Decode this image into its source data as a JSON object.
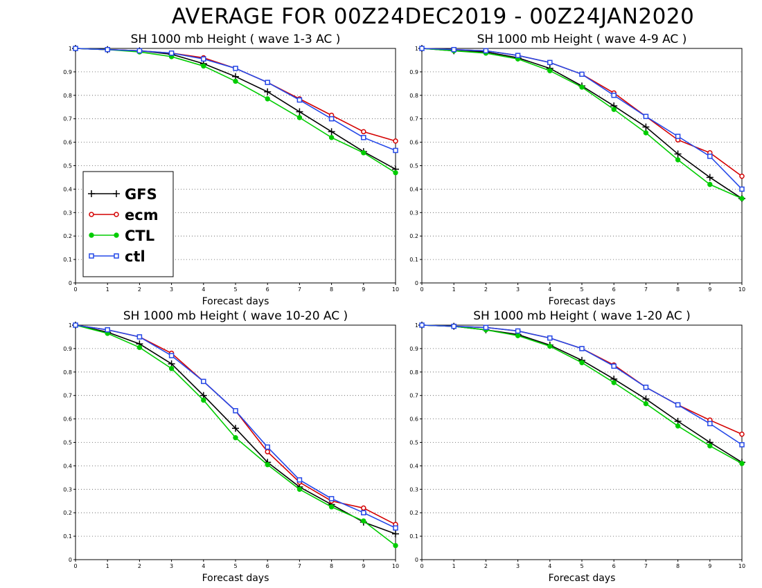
{
  "title": "AVERAGE FOR 00Z24DEC2019 - 00Z24JAN2020",
  "legend": [
    {
      "name": "GFS",
      "color": "#000000",
      "marker": "plus"
    },
    {
      "name": "ecm",
      "color": "#d40000",
      "marker": "open-circle"
    },
    {
      "name": "CTL",
      "color": "#00cc00",
      "marker": "filled-circle"
    },
    {
      "name": "ctl",
      "color": "#2448e8",
      "marker": "open-square"
    }
  ],
  "chart_data": [
    {
      "type": "line",
      "title": "SH 1000 mb Height ( wave 1-3 AC )",
      "xlabel": "Forecast days",
      "ylabel": "",
      "x": [
        0,
        1,
        2,
        3,
        4,
        5,
        6,
        7,
        8,
        9,
        10
      ],
      "xticks": [
        "0",
        "1",
        "2",
        "3",
        "4",
        "5",
        "6",
        "7",
        "8",
        "9",
        "10"
      ],
      "yticks": [
        "0",
        "0.1",
        "0.2",
        "0.3",
        "0.4",
        "0.5",
        "0.6",
        "0.7",
        "0.8",
        "0.9",
        "1"
      ],
      "xlim": [
        0,
        10
      ],
      "ylim": [
        0,
        1
      ],
      "grid": "horizontal dotted",
      "legend_position": "lower-left",
      "series": [
        {
          "name": "GFS",
          "values": [
            1.0,
            0.995,
            0.99,
            0.975,
            0.935,
            0.88,
            0.815,
            0.73,
            0.645,
            0.56,
            0.485
          ]
        },
        {
          "name": "ecm",
          "values": [
            1.0,
            0.995,
            0.99,
            0.98,
            0.96,
            0.915,
            0.855,
            0.785,
            0.715,
            0.645,
            0.605
          ]
        },
        {
          "name": "CTL",
          "values": [
            1.0,
            0.995,
            0.985,
            0.965,
            0.925,
            0.86,
            0.785,
            0.705,
            0.62,
            0.555,
            0.47
          ]
        },
        {
          "name": "ctl",
          "values": [
            1.0,
            0.995,
            0.99,
            0.98,
            0.955,
            0.915,
            0.855,
            0.78,
            0.7,
            0.62,
            0.565
          ]
        }
      ]
    },
    {
      "type": "line",
      "title": "SH 1000 mb Height ( wave 4-9 AC )",
      "xlabel": "Forecast days",
      "ylabel": "",
      "x": [
        0,
        1,
        2,
        3,
        4,
        5,
        6,
        7,
        8,
        9,
        10
      ],
      "xticks": [
        "0",
        "1",
        "2",
        "3",
        "4",
        "5",
        "6",
        "7",
        "8",
        "9",
        "10"
      ],
      "yticks": [
        "0",
        "0.1",
        "0.2",
        "0.3",
        "0.4",
        "0.5",
        "0.6",
        "0.7",
        "0.8",
        "0.9",
        "1"
      ],
      "xlim": [
        0,
        10
      ],
      "ylim": [
        0,
        1
      ],
      "grid": "horizontal dotted",
      "series": [
        {
          "name": "GFS",
          "values": [
            1.0,
            0.99,
            0.985,
            0.96,
            0.915,
            0.84,
            0.755,
            0.665,
            0.55,
            0.45,
            0.36
          ]
        },
        {
          "name": "ecm",
          "values": [
            1.0,
            0.995,
            0.99,
            0.97,
            0.94,
            0.89,
            0.81,
            0.71,
            0.61,
            0.555,
            0.455
          ]
        },
        {
          "name": "CTL",
          "values": [
            1.0,
            0.99,
            0.98,
            0.955,
            0.905,
            0.835,
            0.74,
            0.64,
            0.525,
            0.42,
            0.36
          ]
        },
        {
          "name": "ctl",
          "values": [
            1.0,
            0.995,
            0.99,
            0.97,
            0.94,
            0.89,
            0.8,
            0.71,
            0.625,
            0.54,
            0.4
          ]
        }
      ]
    },
    {
      "type": "line",
      "title": "SH 1000 mb Height ( wave 10-20 AC )",
      "xlabel": "Forecast days",
      "ylabel": "",
      "x": [
        0,
        1,
        2,
        3,
        4,
        5,
        6,
        7,
        8,
        9,
        10
      ],
      "xticks": [
        "0",
        "1",
        "2",
        "3",
        "4",
        "5",
        "6",
        "7",
        "8",
        "9",
        "10"
      ],
      "yticks": [
        "0",
        "0.1",
        "0.2",
        "0.3",
        "0.4",
        "0.5",
        "0.6",
        "0.7",
        "0.8",
        "0.9",
        "1"
      ],
      "xlim": [
        0,
        10
      ],
      "ylim": [
        0,
        1
      ],
      "grid": "horizontal dotted",
      "series": [
        {
          "name": "GFS",
          "values": [
            1.0,
            0.97,
            0.92,
            0.835,
            0.7,
            0.56,
            0.415,
            0.31,
            0.235,
            0.16,
            0.11
          ]
        },
        {
          "name": "ecm",
          "values": [
            1.0,
            0.98,
            0.95,
            0.88,
            0.76,
            0.635,
            0.46,
            0.33,
            0.25,
            0.22,
            0.15
          ]
        },
        {
          "name": "CTL",
          "values": [
            1.0,
            0.965,
            0.905,
            0.815,
            0.68,
            0.52,
            0.405,
            0.3,
            0.225,
            0.165,
            0.06
          ]
        },
        {
          "name": "ctl",
          "values": [
            1.0,
            0.98,
            0.95,
            0.87,
            0.76,
            0.635,
            0.48,
            0.34,
            0.26,
            0.2,
            0.135
          ]
        }
      ]
    },
    {
      "type": "line",
      "title": "SH 1000 mb Height ( wave 1-20 AC )",
      "xlabel": "Forecast days",
      "ylabel": "",
      "x": [
        0,
        1,
        2,
        3,
        4,
        5,
        6,
        7,
        8,
        9,
        10
      ],
      "xticks": [
        "0",
        "1",
        "2",
        "3",
        "4",
        "5",
        "6",
        "7",
        "8",
        "9",
        "10"
      ],
      "yticks": [
        "0",
        "0.1",
        "0.2",
        "0.3",
        "0.4",
        "0.5",
        "0.6",
        "0.7",
        "0.8",
        "0.9",
        "1"
      ],
      "xlim": [
        0,
        10
      ],
      "ylim": [
        0,
        1
      ],
      "grid": "horizontal dotted",
      "series": [
        {
          "name": "GFS",
          "values": [
            1.0,
            0.995,
            0.98,
            0.96,
            0.915,
            0.85,
            0.77,
            0.685,
            0.59,
            0.5,
            0.415
          ]
        },
        {
          "name": "ecm",
          "values": [
            1.0,
            0.995,
            0.99,
            0.975,
            0.945,
            0.9,
            0.83,
            0.735,
            0.66,
            0.595,
            0.535
          ]
        },
        {
          "name": "CTL",
          "values": [
            1.0,
            0.995,
            0.98,
            0.955,
            0.91,
            0.84,
            0.755,
            0.665,
            0.57,
            0.485,
            0.41
          ]
        },
        {
          "name": "ctl",
          "values": [
            1.0,
            0.995,
            0.99,
            0.975,
            0.945,
            0.9,
            0.825,
            0.735,
            0.66,
            0.58,
            0.49
          ]
        }
      ]
    }
  ]
}
